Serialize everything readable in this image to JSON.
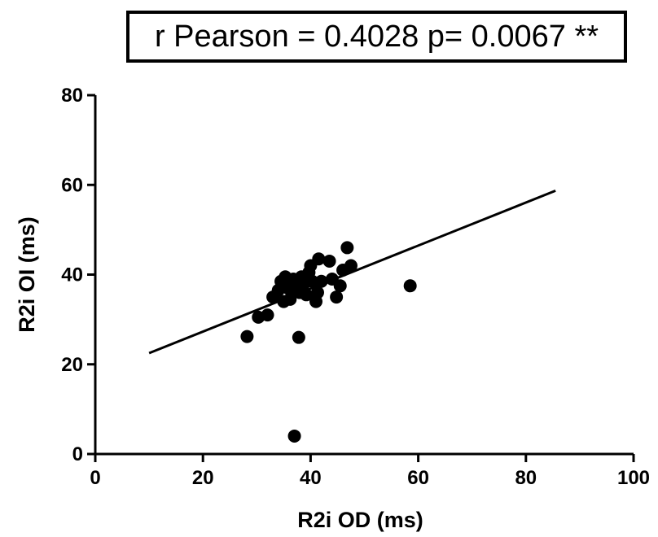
{
  "annotation": "r Pearson = 0.4028 p= 0.0067 **",
  "chart_data": {
    "type": "scatter",
    "title": "",
    "xlabel": "R2i OD (ms)",
    "ylabel": "R2i OI (ms)",
    "xlim": [
      0,
      100
    ],
    "ylim": [
      0,
      80
    ],
    "x_ticks": [
      0,
      20,
      40,
      60,
      80,
      100
    ],
    "y_ticks": [
      0,
      20,
      40,
      60,
      80
    ],
    "grid": false,
    "point_color": "#000000",
    "points": [
      {
        "x": 28.2,
        "y": 26.2
      },
      {
        "x": 30.3,
        "y": 30.5
      },
      {
        "x": 32.0,
        "y": 31.0
      },
      {
        "x": 33.0,
        "y": 35.0
      },
      {
        "x": 34.0,
        "y": 36.5
      },
      {
        "x": 34.5,
        "y": 38.5
      },
      {
        "x": 35.0,
        "y": 34.0
      },
      {
        "x": 35.3,
        "y": 39.5
      },
      {
        "x": 35.8,
        "y": 37.0
      },
      {
        "x": 36.2,
        "y": 34.5
      },
      {
        "x": 36.5,
        "y": 36.0
      },
      {
        "x": 36.8,
        "y": 39.0
      },
      {
        "x": 37.0,
        "y": 4.0
      },
      {
        "x": 37.2,
        "y": 37.5
      },
      {
        "x": 37.8,
        "y": 26.0
      },
      {
        "x": 38.0,
        "y": 36.0
      },
      {
        "x": 38.3,
        "y": 39.5
      },
      {
        "x": 38.8,
        "y": 38.0
      },
      {
        "x": 39.2,
        "y": 35.5
      },
      {
        "x": 39.7,
        "y": 40.5
      },
      {
        "x": 40.0,
        "y": 42.0
      },
      {
        "x": 40.3,
        "y": 38.5
      },
      {
        "x": 41.0,
        "y": 34.0
      },
      {
        "x": 41.3,
        "y": 36.0
      },
      {
        "x": 41.5,
        "y": 43.5
      },
      {
        "x": 42.0,
        "y": 38.5
      },
      {
        "x": 43.5,
        "y": 43.0
      },
      {
        "x": 44.0,
        "y": 39.0
      },
      {
        "x": 44.8,
        "y": 35.0
      },
      {
        "x": 45.5,
        "y": 37.5
      },
      {
        "x": 46.0,
        "y": 41.0
      },
      {
        "x": 46.8,
        "y": 46.0
      },
      {
        "x": 47.5,
        "y": 42.0
      },
      {
        "x": 58.5,
        "y": 37.5
      }
    ],
    "regression_line": {
      "x": [
        10,
        85.5
      ],
      "y": [
        22.5,
        58.7
      ]
    }
  }
}
